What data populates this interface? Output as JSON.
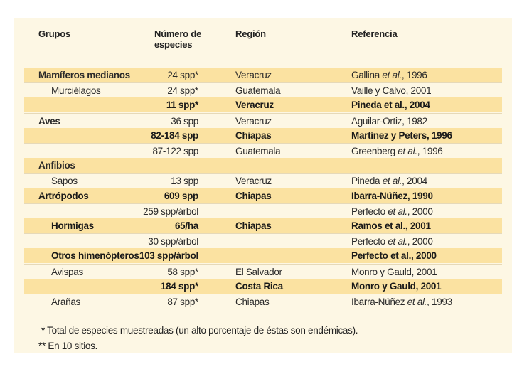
{
  "table": {
    "headers": {
      "group": "Grupos",
      "number_line1": "Número de",
      "number_line2": "especies",
      "region": "Región",
      "reference": "Referencia"
    },
    "rows": [
      {
        "group": "Mamíferos medianos",
        "number": "24 spp*",
        "region": "Veracruz",
        "ref": [
          {
            "t": "Gallina "
          },
          {
            "t": "et al.",
            "i": true
          },
          {
            "t": ", 1996"
          }
        ],
        "highlight": true,
        "bold": false,
        "group_bold": true,
        "sub": false
      },
      {
        "group": "Murciélagos",
        "number": "24 spp*",
        "region": "Guatemala",
        "ref": [
          {
            "t": "Vaille y Calvo, 2001"
          }
        ],
        "highlight": false,
        "bold": false,
        "group_bold": false,
        "sub": true
      },
      {
        "group": "",
        "number": "11 spp*",
        "region": "Veracruz",
        "ref": [
          {
            "t": "Pineda et al., 2004"
          }
        ],
        "highlight": true,
        "bold": true,
        "group_bold": false,
        "sub": true
      },
      {
        "group": "Aves",
        "number": "36 spp",
        "region": "Veracruz",
        "ref": [
          {
            "t": "Aguilar-Ortiz, 1982"
          }
        ],
        "highlight": false,
        "bold": false,
        "group_bold": true,
        "sub": false
      },
      {
        "group": "",
        "number": "82-184 spp",
        "region": "Chiapas",
        "ref": [
          {
            "t": "Martínez y Peters, 1996"
          }
        ],
        "highlight": true,
        "bold": true,
        "group_bold": false,
        "sub": false
      },
      {
        "group": "",
        "number": "87-122 spp",
        "region": "Guatemala",
        "ref": [
          {
            "t": "Greenberg "
          },
          {
            "t": "et al.",
            "i": true
          },
          {
            "t": ", 1996"
          }
        ],
        "highlight": false,
        "bold": false,
        "group_bold": false,
        "sub": false
      },
      {
        "group": "Anfibios",
        "number": "",
        "region": "",
        "ref": [],
        "highlight": true,
        "bold": false,
        "group_bold": true,
        "sub": false
      },
      {
        "group": "Sapos",
        "number": "13 spp",
        "region": "Veracruz",
        "ref": [
          {
            "t": "Pineda "
          },
          {
            "t": "et al.",
            "i": true
          },
          {
            "t": ", 2004"
          }
        ],
        "highlight": false,
        "bold": false,
        "group_bold": false,
        "sub": true
      },
      {
        "group": "Artrópodos",
        "number": "609 spp",
        "region": "Chiapas",
        "ref": [
          {
            "t": "Ibarra-Núñez, 1990"
          }
        ],
        "highlight": true,
        "bold": true,
        "group_bold": true,
        "sub": false
      },
      {
        "group": "",
        "number": "259 spp/árbol",
        "region": "",
        "ref": [
          {
            "t": "Perfecto "
          },
          {
            "t": "et al.",
            "i": true
          },
          {
            "t": ", 2000"
          }
        ],
        "highlight": false,
        "bold": false,
        "group_bold": false,
        "sub": false
      },
      {
        "group": "Hormigas",
        "number": "65/ha",
        "region": "Chiapas",
        "ref": [
          {
            "t": "Ramos et al., 2001"
          }
        ],
        "highlight": true,
        "bold": true,
        "group_bold": true,
        "sub": true
      },
      {
        "group": "",
        "number": "30 spp/árbol",
        "region": "",
        "ref": [
          {
            "t": "Perfecto "
          },
          {
            "t": "et al.",
            "i": true
          },
          {
            "t": ", 2000"
          }
        ],
        "highlight": false,
        "bold": false,
        "group_bold": false,
        "sub": false
      },
      {
        "group": "Otros himenópteros",
        "number": "103 spp/árbol",
        "region": "",
        "ref": [
          {
            "t": "Perfecto et al., 2000"
          }
        ],
        "highlight": true,
        "bold": true,
        "group_bold": true,
        "sub": true
      },
      {
        "group": "Avispas",
        "number": "58 spp*",
        "region": "El Salvador",
        "ref": [
          {
            "t": "Monro y Gauld, 2001"
          }
        ],
        "highlight": false,
        "bold": false,
        "group_bold": false,
        "sub": true
      },
      {
        "group": "",
        "number": "184 spp*",
        "region": "Costa Rica",
        "ref": [
          {
            "t": "Monro y Gauld, 2001"
          }
        ],
        "highlight": true,
        "bold": true,
        "group_bold": false,
        "sub": false
      },
      {
        "group": "Arañas",
        "number": "87 spp*",
        "region": "Chiapas",
        "ref": [
          {
            "t": "Ibarra-Núñez "
          },
          {
            "t": "et al.",
            "i": true
          },
          {
            "t": ", 1993"
          }
        ],
        "highlight": false,
        "bold": false,
        "group_bold": false,
        "sub": true
      }
    ]
  },
  "footnotes": {
    "note1": "* Total de especies muestreadas (un alto porcentaje de éstas son endémicas).",
    "note2": "** En 10 sitios."
  },
  "colors": {
    "panel_bg": "#fdf7e4",
    "highlight_row": "#fbe2a1"
  }
}
